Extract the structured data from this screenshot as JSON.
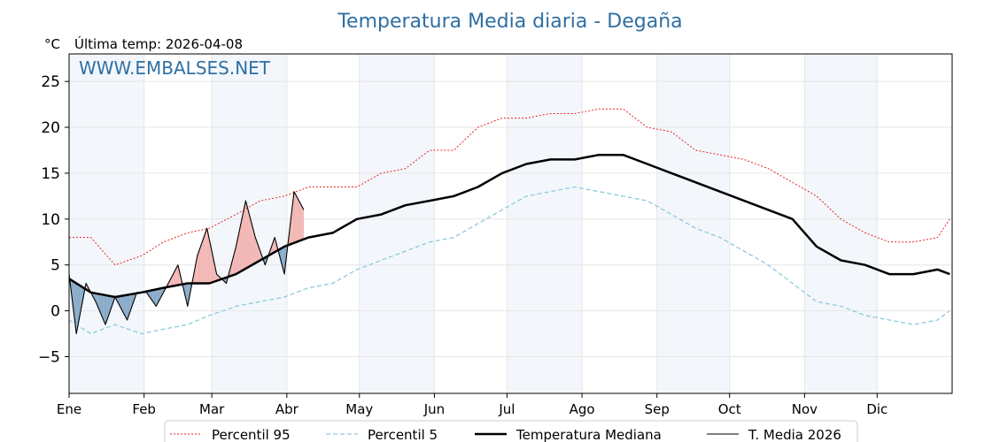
{
  "chart_data": {
    "type": "line",
    "title": "Temperatura Media diaria - Degaña",
    "unit_label": "°C",
    "last_temp_label": "Última temp: 2026-04-08",
    "watermark": "WWW.EMBALSES.NET",
    "ylim": [
      -9,
      28
    ],
    "yticks": [
      -5,
      0,
      5,
      10,
      15,
      20,
      25
    ],
    "ytick_labels": [
      "−5",
      "0",
      "5",
      "10",
      "15",
      "20",
      "25"
    ],
    "months": [
      "Ene",
      "Feb",
      "Mar",
      "Abr",
      "May",
      "Jun",
      "Jul",
      "Ago",
      "Sep",
      "Oct",
      "Nov",
      "Dic"
    ],
    "month_start_days": [
      1,
      32,
      60,
      91,
      121,
      152,
      182,
      213,
      244,
      274,
      305,
      335
    ],
    "grid": true,
    "legend_position": "bottom",
    "series": [
      {
        "name": "Percentil 95",
        "color": "#e8231e",
        "style": "dotted",
        "x": [
          1,
          10,
          20,
          31,
          40,
          50,
          59,
          70,
          80,
          90,
          100,
          110,
          120,
          130,
          140,
          150,
          160,
          170,
          180,
          190,
          200,
          210,
          220,
          230,
          240,
          250,
          260,
          270,
          280,
          290,
          300,
          310,
          320,
          330,
          340,
          350,
          360,
          365
        ],
        "values": [
          8,
          8,
          5,
          6,
          7.5,
          8.5,
          9,
          10.5,
          12,
          12.5,
          13.5,
          13.5,
          13.5,
          15,
          15.5,
          17.5,
          17.5,
          20,
          21,
          21,
          21.5,
          21.5,
          22,
          22,
          20,
          19.5,
          17.5,
          17,
          16.5,
          15.5,
          14,
          12.5,
          10,
          8.5,
          7.5,
          7.5,
          8,
          10
        ]
      },
      {
        "name": "Percentil 5",
        "color": "#8ec9dc",
        "style": "dashed",
        "x": [
          1,
          10,
          20,
          31,
          40,
          50,
          59,
          70,
          80,
          90,
          100,
          110,
          120,
          130,
          140,
          150,
          160,
          170,
          180,
          190,
          200,
          210,
          220,
          230,
          240,
          250,
          260,
          270,
          280,
          290,
          300,
          310,
          320,
          330,
          340,
          350,
          360,
          365
        ],
        "values": [
          -1,
          -2.5,
          -1.5,
          -2.5,
          -2,
          -1.5,
          -0.5,
          0.5,
          1,
          1.5,
          2.5,
          3,
          4.5,
          5.5,
          6.5,
          7.5,
          8,
          9.5,
          11,
          12.5,
          13,
          13.5,
          13,
          12.5,
          12,
          10.5,
          9,
          8,
          6.5,
          5,
          3,
          1,
          0.5,
          -0.5,
          -1,
          -1.5,
          -1,
          0
        ]
      },
      {
        "name": "Temperatura Mediana",
        "color": "#000000",
        "style": "solid-thick",
        "x": [
          1,
          10,
          20,
          31,
          40,
          50,
          59,
          70,
          80,
          90,
          100,
          110,
          120,
          130,
          140,
          150,
          160,
          170,
          180,
          190,
          200,
          210,
          220,
          230,
          240,
          250,
          260,
          270,
          280,
          290,
          300,
          310,
          320,
          330,
          340,
          350,
          360,
          365
        ],
        "values": [
          3.5,
          2,
          1.5,
          2,
          2.5,
          3,
          3,
          4,
          5.5,
          7,
          8,
          8.5,
          10,
          10.5,
          11.5,
          12,
          12.5,
          13.5,
          15,
          16,
          16.5,
          16.5,
          17,
          17,
          16,
          15,
          14,
          13,
          12,
          11,
          10,
          7,
          5.5,
          5,
          4,
          4,
          4.5,
          4
        ]
      },
      {
        "name": "T. Media 2026",
        "color": "#000000",
        "style": "solid-thin",
        "x": [
          1,
          4,
          8,
          12,
          16,
          20,
          25,
          29,
          33,
          37,
          41,
          46,
          50,
          54,
          58,
          62,
          66,
          70,
          74,
          78,
          82,
          86,
          90,
          94,
          98
        ],
        "values": [
          4,
          -2.5,
          3,
          1,
          -1.5,
          1.5,
          -1,
          2,
          2,
          0.5,
          2.5,
          5,
          0.5,
          6,
          9,
          4,
          3,
          7,
          12,
          8,
          5,
          8,
          4,
          13,
          11
        ]
      }
    ]
  }
}
